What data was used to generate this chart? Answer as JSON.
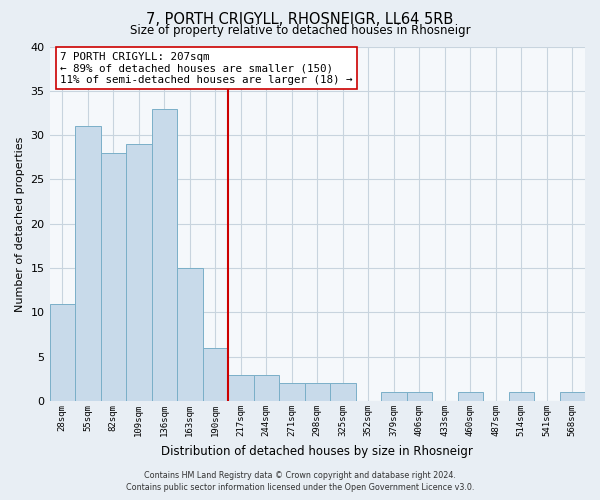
{
  "title": "7, PORTH CRIGYLL, RHOSNEIGR, LL64 5RB",
  "subtitle": "Size of property relative to detached houses in Rhosneigr",
  "xlabel": "Distribution of detached houses by size in Rhosneigr",
  "ylabel": "Number of detached properties",
  "bin_labels": [
    "28sqm",
    "55sqm",
    "82sqm",
    "109sqm",
    "136sqm",
    "163sqm",
    "190sqm",
    "217sqm",
    "244sqm",
    "271sqm",
    "298sqm",
    "325sqm",
    "352sqm",
    "379sqm",
    "406sqm",
    "433sqm",
    "460sqm",
    "487sqm",
    "514sqm",
    "541sqm",
    "568sqm"
  ],
  "bar_heights": [
    11,
    31,
    28,
    29,
    33,
    15,
    6,
    3,
    3,
    2,
    2,
    2,
    0,
    1,
    1,
    0,
    1,
    0,
    1,
    0,
    1
  ],
  "bar_color": "#c8daea",
  "bar_edge_color": "#7aafc8",
  "vline_color": "#cc0000",
  "ylim": [
    0,
    40
  ],
  "yticks": [
    0,
    5,
    10,
    15,
    20,
    25,
    30,
    35,
    40
  ],
  "annotation_title": "7 PORTH CRIGYLL: 207sqm",
  "annotation_line1": "← 89% of detached houses are smaller (150)",
  "annotation_line2": "11% of semi-detached houses are larger (18) →",
  "footer_line1": "Contains HM Land Registry data © Crown copyright and database right 2024.",
  "footer_line2": "Contains public sector information licensed under the Open Government Licence v3.0.",
  "bg_color": "#e8eef4",
  "plot_bg_color": "#f5f8fb",
  "grid_color": "#c8d4de",
  "ann_box_edge_color": "#cc0000",
  "ann_box_face_color": "#ffffff"
}
